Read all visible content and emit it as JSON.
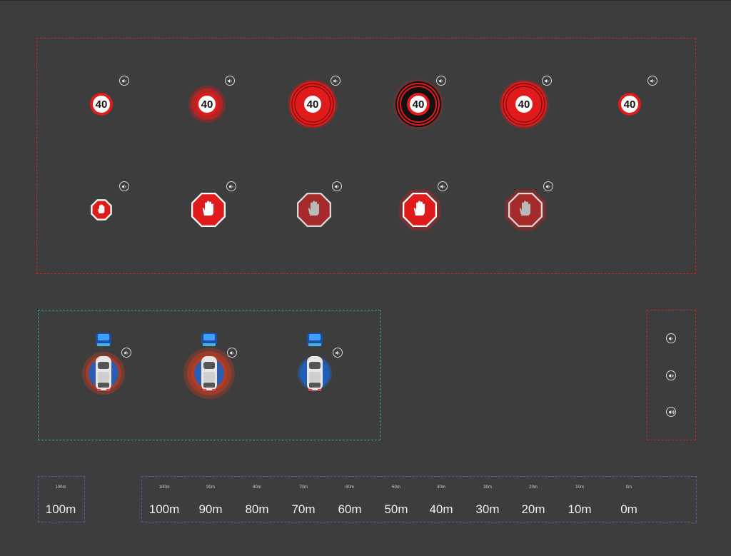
{
  "speed_signs": [
    {
      "label": "40",
      "state": "default",
      "sound_icon": "speaker-low-icon"
    },
    {
      "label": "40",
      "state": "glow",
      "sound_icon": "speaker-low-icon"
    },
    {
      "label": "40",
      "state": "rings-glow",
      "sound_icon": "speaker-low-icon"
    },
    {
      "label": "40",
      "state": "rings-dark",
      "sound_icon": "speaker-low-icon"
    },
    {
      "label": "40",
      "state": "rings-glow",
      "sound_icon": "speaker-low-icon"
    },
    {
      "label": "40",
      "state": "default",
      "sound_icon": "speaker-low-icon"
    }
  ],
  "stop_signs": [
    {
      "state": "small",
      "sound_icon": "speaker-low-icon"
    },
    {
      "state": "large",
      "sound_icon": "speaker-low-icon"
    },
    {
      "state": "dimmed",
      "sound_icon": "speaker-low-icon"
    },
    {
      "state": "glow",
      "sound_icon": "speaker-low-icon"
    },
    {
      "state": "dimmed-glow",
      "sound_icon": "speaker-low-icon"
    }
  ],
  "cars": [
    {
      "state": "red-warning",
      "sound_icon": "speaker-low-icon"
    },
    {
      "state": "red-warning-strong",
      "sound_icon": "speaker-low-icon"
    },
    {
      "state": "blue-normal",
      "sound_icon": "speaker-low-icon"
    }
  ],
  "sound_levels": [
    {
      "icon": "speaker-low-icon"
    },
    {
      "icon": "speaker-medium-icon"
    },
    {
      "icon": "speaker-high-icon"
    }
  ],
  "distance_single": {
    "small": "100m",
    "big": "100m"
  },
  "distance_scale": [
    {
      "small": "100m",
      "big": "100m"
    },
    {
      "small": "90m",
      "big": "90m"
    },
    {
      "small": "80m",
      "big": "80m"
    },
    {
      "small": "70m",
      "big": "70m"
    },
    {
      "small": "60m",
      "big": "60m"
    },
    {
      "small": "50m",
      "big": "50m"
    },
    {
      "small": "40m",
      "big": "40m"
    },
    {
      "small": "30m",
      "big": "30m"
    },
    {
      "small": "20m",
      "big": "20m"
    },
    {
      "small": "10m",
      "big": "10m"
    },
    {
      "small": "0m",
      "big": "0m"
    }
  ],
  "colors": {
    "background": "#3d3d3d",
    "sign_red": "#e01b1b",
    "frame_red": "#c0282a",
    "frame_teal": "#2fa3a8",
    "frame_purple": "#6a4fb0",
    "car_blue": "#1e6fd9"
  }
}
